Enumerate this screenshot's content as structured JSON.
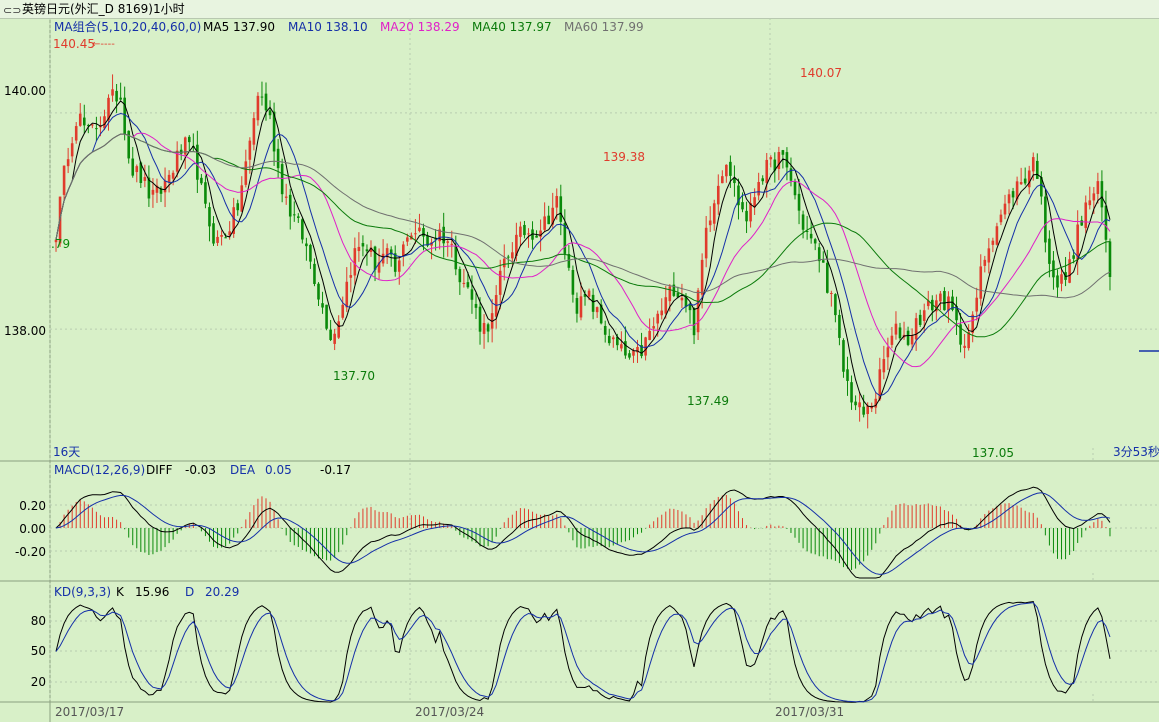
{
  "window": {
    "title": "英镑日元(外汇_D 8169)1小时",
    "icon": "chart-window-icon"
  },
  "colors": {
    "background": "#d8f0c8",
    "grid": "#b7ccb0",
    "up": "#e03b2c",
    "down": "#0a8a0a",
    "ma5": "#000000",
    "ma10": "#1530a8",
    "ma20": "#e020c8",
    "ma40": "#0a7a0a",
    "ma60": "#707070"
  },
  "main_panel": {
    "legend": [
      {
        "text": "MA组合(5,10,20,40,60,0)",
        "color": "#1530a8"
      },
      {
        "text": "MA5 137.90",
        "color": "#000000"
      },
      {
        "text": "MA10 138.10",
        "color": "#1530a8"
      },
      {
        "text": "MA20 138.29",
        "color": "#e020c8"
      },
      {
        "text": "MA40 137.97",
        "color": "#0a7a0a"
      },
      {
        "text": "MA60 137.99",
        "color": "#707070"
      }
    ],
    "y_ticks": [
      "140.00",
      "138.00"
    ],
    "left_price": ".79",
    "left_corner": "16天",
    "right_corner": "3分53秒",
    "annotations": [
      {
        "text": "140.45",
        "arrow": "←----",
        "color": "#e03b2c"
      },
      {
        "text": "137.70",
        "color": "#0a7a0a"
      },
      {
        "text": "139.38",
        "color": "#e03b2c"
      },
      {
        "text": "137.49",
        "color": "#0a7a0a"
      },
      {
        "text": "140.07",
        "color": "#e03b2c"
      },
      {
        "text": "137.05",
        "color": "#0a7a0a"
      }
    ]
  },
  "macd_panel": {
    "title": "MACD(12,26,9)",
    "diff_label": "DIFF",
    "diff_value": "-0.03",
    "dea_label": "DEA",
    "dea_value": "0.05",
    "macd_value": "-0.17",
    "y_ticks": [
      "0.20",
      "0.00",
      "-0.20"
    ]
  },
  "kd_panel": {
    "title": "KD(9,3,3)",
    "k_label": "K",
    "k_value": "15.96",
    "d_label": "D",
    "d_value": "20.29",
    "y_ticks": [
      "80",
      "50",
      "20"
    ]
  },
  "x_axis": {
    "labels": [
      "2017/03/17",
      "2017/03/24",
      "2017/03/31"
    ]
  },
  "chart_data": [
    {
      "type": "candlestick",
      "title": "英镑日元(外汇_D 8169)1小时",
      "unit": "hourly close",
      "key_points": [
        {
          "label": "140.45",
          "value": 140.45
        },
        {
          "label": "137.70",
          "value": 137.7
        },
        {
          "label": "139.38",
          "value": 139.38
        },
        {
          "label": "137.49",
          "value": 137.49
        },
        {
          "label": "140.07",
          "value": 140.07
        },
        {
          "label": "137.05",
          "value": 137.05
        }
      ],
      "close_path": [
        138.9,
        139.6,
        140.0,
        139.8,
        139.9,
        140.1,
        140.2,
        139.5,
        139.4,
        139.2,
        139.3,
        139.5,
        139.7,
        139.6,
        139.1,
        138.8,
        138.9,
        139.1,
        139.6,
        140.2,
        140.0,
        139.4,
        139.1,
        138.9,
        138.6,
        138.2,
        137.9,
        138.3,
        138.7,
        138.8,
        138.6,
        138.7,
        138.5,
        138.9,
        138.9,
        138.8,
        138.9,
        138.8,
        138.5,
        138.3,
        138.0,
        138.1,
        138.6,
        138.8,
        138.9,
        138.9,
        139.0,
        139.2,
        138.6,
        138.2,
        138.3,
        138.1,
        137.9,
        137.8,
        137.7,
        137.8,
        138.0,
        138.2,
        138.4,
        138.3,
        138.0,
        138.9,
        139.3,
        139.6,
        139.2,
        139.0,
        139.4,
        139.5,
        139.6,
        139.4,
        139.0,
        138.8,
        138.6,
        138.2,
        137.6,
        137.3,
        137.2,
        137.4,
        137.8,
        138.0,
        137.9,
        138.1,
        138.2,
        138.3,
        138.2,
        137.9,
        138.0,
        138.6,
        138.9,
        139.1,
        139.3,
        139.4,
        139.6,
        138.8,
        138.4,
        138.5,
        138.9,
        139.2,
        139.3,
        138.5
      ],
      "ma5": 137.9,
      "ma10": 138.1,
      "ma20": 138.29,
      "ma40": 137.97,
      "ma60": 137.99,
      "ylim": [
        136.9,
        140.6
      ]
    },
    {
      "type": "bar",
      "title": "MACD(12,26,9)",
      "series": [
        {
          "name": "DIFF",
          "last": -0.03
        },
        {
          "name": "DEA",
          "last": 0.05
        },
        {
          "name": "MACD",
          "last": -0.17
        }
      ],
      "ylim": [
        -0.35,
        0.35
      ]
    },
    {
      "type": "line",
      "title": "KD(9,3,3)",
      "series": [
        {
          "name": "K",
          "last": 15.96
        },
        {
          "name": "D",
          "last": 20.29
        }
      ],
      "ylim": [
        0,
        100
      ]
    }
  ]
}
